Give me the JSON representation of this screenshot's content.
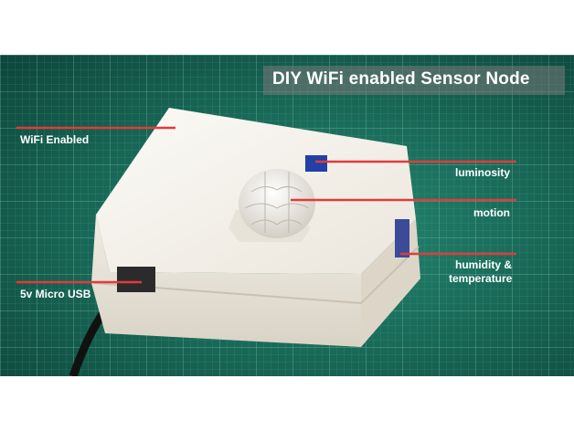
{
  "title": "DIY WiFi enabled Sensor Node",
  "labels": {
    "wifi": "WiFi Enabled",
    "usb": "5v Micro USB",
    "luminosity": "luminosity",
    "motion": "motion",
    "humidity_line1": "humidity &",
    "humidity_line2": "temperature"
  },
  "colors": {
    "background": "#1f7a66",
    "enclosure": "#f3f0ea",
    "pointer_lines": "#e23b3b",
    "label_text": "#ffffff"
  }
}
